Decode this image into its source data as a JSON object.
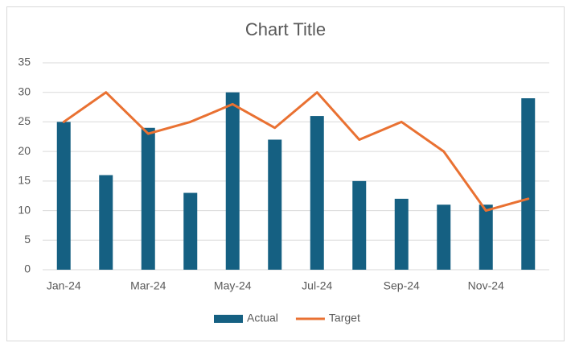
{
  "chart_data": {
    "type": "bar",
    "title": "Chart Title",
    "categories": [
      "Jan-24",
      null,
      "Mar-24",
      null,
      "May-24",
      null,
      "Jul-24",
      null,
      "Sep-24",
      null,
      "Nov-24",
      null
    ],
    "series": [
      {
        "name": "Actual",
        "type": "bar",
        "color": "#156082",
        "values": [
          25,
          16,
          24,
          13,
          30,
          22,
          26,
          15,
          12,
          11,
          11,
          29
        ]
      },
      {
        "name": "Target",
        "type": "line",
        "color": "#e97132",
        "values": [
          25,
          30,
          23,
          25,
          28,
          24,
          30,
          22,
          25,
          20,
          10,
          12
        ]
      }
    ],
    "ylim": [
      0,
      35
    ],
    "yticks": [
      0,
      5,
      10,
      15,
      20,
      25,
      30,
      35
    ],
    "grid": true,
    "legend": "bottom"
  }
}
